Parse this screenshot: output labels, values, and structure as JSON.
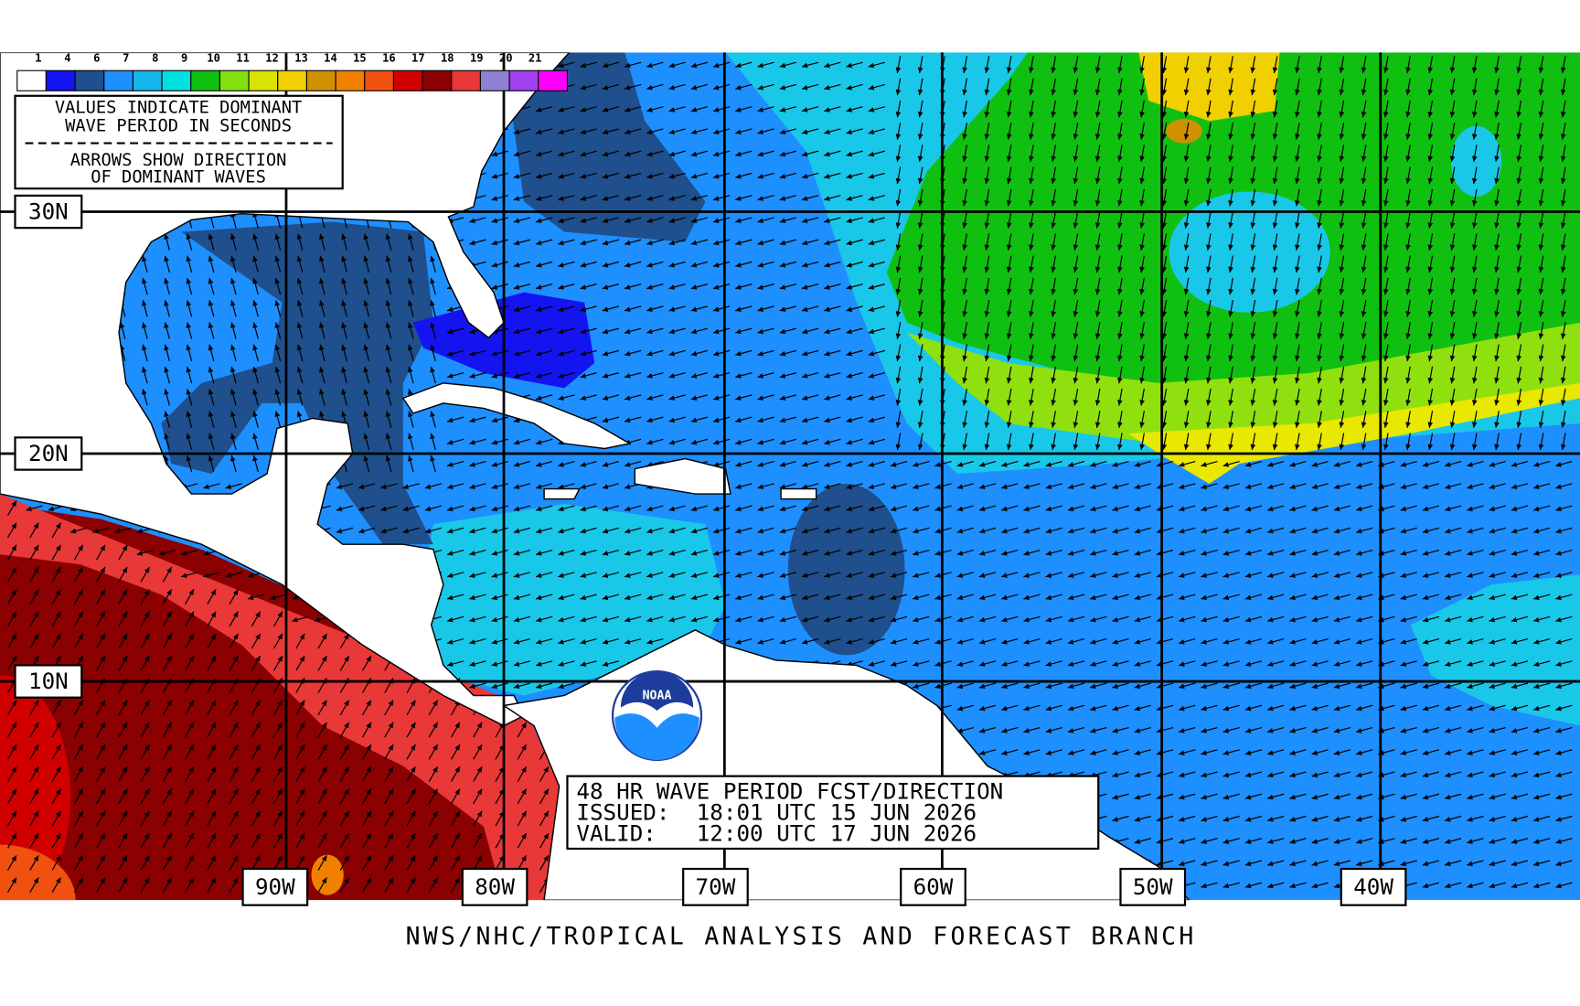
{
  "legend": {
    "labels": [
      "1",
      "4",
      "6",
      "7",
      "8",
      "9",
      "10",
      "11",
      "12",
      "13",
      "14",
      "15",
      "16",
      "17",
      "18",
      "19",
      "20",
      "21"
    ],
    "colors": [
      "#ffffff",
      "#1414f0",
      "#1f4f8c",
      "#1e8fff",
      "#14b4ec",
      "#00e0e0",
      "#10c010",
      "#80e010",
      "#d8e400",
      "#f0d000",
      "#d09000",
      "#f08000",
      "#f05010",
      "#d00000",
      "#8b0000",
      "#e83838",
      "#9080d0",
      "#a040f0",
      "#ff00ff"
    ]
  },
  "notes": {
    "line1": "VALUES INDICATE DOMINANT",
    "line2": "WAVE PERIOD IN SECONDS",
    "line3": "ARROWS SHOW DIRECTION",
    "line4": "OF DOMINANT WAVES"
  },
  "latitudes": [
    "30N",
    "20N",
    "10N"
  ],
  "longitudes": [
    "90W",
    "80W",
    "70W",
    "60W",
    "50W",
    "40W"
  ],
  "forecast": {
    "title": "48 HR WAVE PERIOD FCST/DIRECTION",
    "issued": "ISSUED:  18:01 UTC 15 JUN 2026",
    "valid": "VALID:   12:00 UTC 17 JUN 2026"
  },
  "logo": "NOAA",
  "footer": "NWS/NHC/TROPICAL ANALYSIS AND FORECAST BRANCH"
}
